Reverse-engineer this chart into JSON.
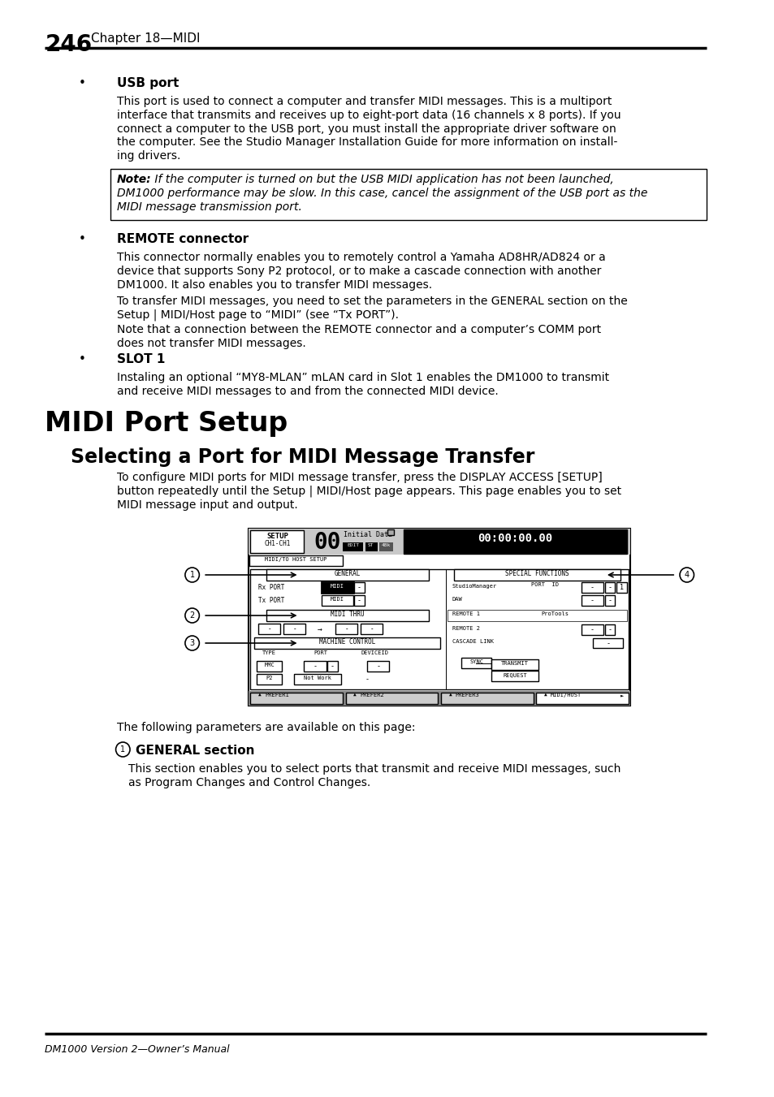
{
  "page_number": "246",
  "chapter": "Chapter 18—MIDI",
  "footer": "DM1000 Version 2—Owner’s Manual",
  "bg_color": "#ffffff",
  "section_title": "MIDI Port Setup",
  "subsection_title": "Selecting a Port for MIDI Message Transfer",
  "bullet1_bold": "USB port",
  "bullet1_text": "This port is used to connect a computer and transfer MIDI messages. This is a multiport\ninterface that transmits and receives up to eight-port data (16 channels x 8 ports). If you\nconnect a computer to the USB port, you must install the appropriate driver software on\nthe computer. See the Studio Manager Installation Guide for more information on install-\ning drivers.",
  "note_text_bold": "Note: ",
  "note_text_italic": " If the computer is turned on but the USB MIDI application has not been launched,\nDM1000 performance may be slow. In this case, cancel the assignment of the USB port as the\nMIDI message transmission port.",
  "bullet2_bold": "REMOTE connector",
  "bullet2_text1": "This connector normally enables you to remotely control a Yamaha AD8HR/AD824 or a\ndevice that supports Sony P2 protocol, or to make a cascade connection with another\nDM1000. It also enables you to transfer MIDI messages.",
  "bullet2_text2": "To transfer MIDI messages, you need to set the parameters in the GENERAL section on the\nSetup | MIDI/Host page to “MIDI” (see “Tx PORT”).",
  "bullet2_text3": "Note that a connection between the REMOTE connector and a computer’s COMM port\ndoes not transfer MIDI messages.",
  "bullet3_bold": "SLOT 1",
  "bullet3_text": "Instaling an optional “MY8-MLAN” mLAN card in Slot 1 enables the DM1000 to transmit\nand receive MIDI messages to and from the connected MIDI device.",
  "subsection_intro": "To configure MIDI ports for MIDI message transfer, press the DISPLAY ACCESS [SETUP]\nbutton repeatedly until the Setup | MIDI/Host page appears. This page enables you to set\nMIDI message input and output.",
  "general_section_title": "GENERAL section",
  "general_section_text": "This section enables you to select ports that transmit and receive MIDI messages, such\nas Program Changes and Control Changes."
}
